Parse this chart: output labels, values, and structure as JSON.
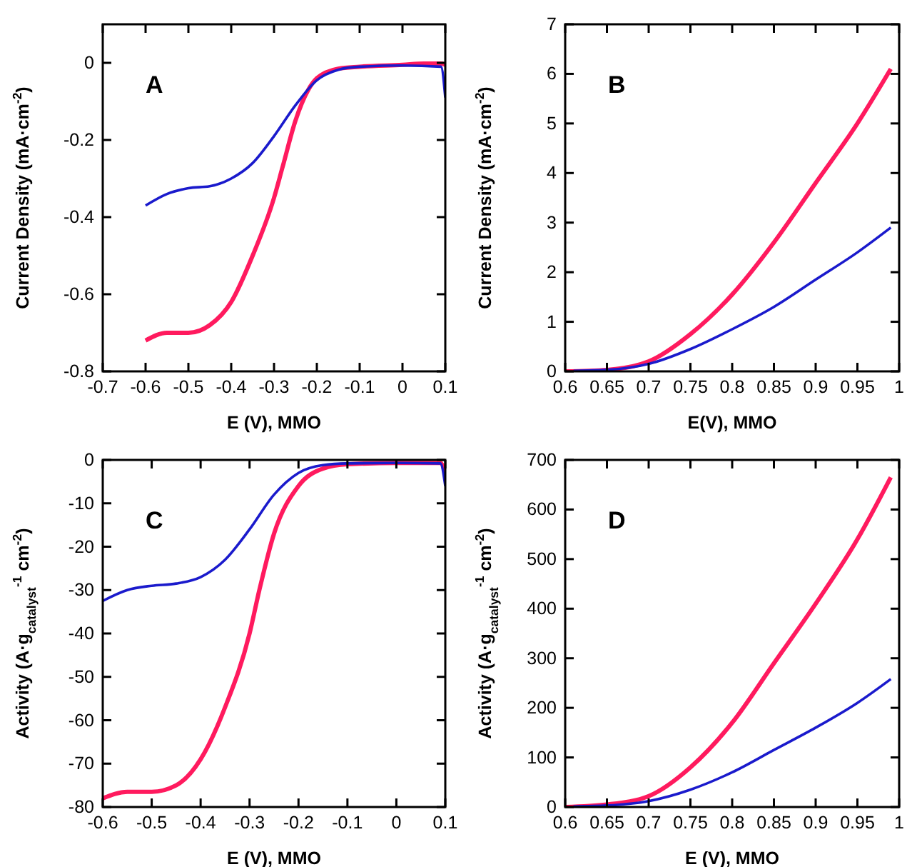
{
  "chart_data": [
    {
      "type": "line",
      "annotations": [
        "A"
      ],
      "xlabel": "E (V), MMO",
      "ylabel": "Current Density (mA·cm$^{-2}$)",
      "xlim": [
        -0.7,
        0.1
      ],
      "xticks": [
        -0.7,
        -0.6,
        -0.5,
        -0.4,
        -0.3,
        -0.2,
        -0.1,
        0,
        0.1
      ],
      "ylim": [
        -0.8,
        0.1
      ],
      "yticks": [
        -0.8,
        -0.6,
        -0.4,
        -0.2,
        0
      ],
      "grid": false,
      "line_style": "solid",
      "marker": "none",
      "series": [
        {
          "color": "#ff1a5e",
          "x": [
            -0.6,
            -0.55,
            -0.5,
            -0.45,
            -0.4,
            -0.35,
            -0.3,
            -0.28,
            -0.25,
            -0.22,
            -0.2,
            -0.15,
            -0.1,
            0,
            0.05,
            0.09,
            0.1
          ],
          "values": [
            -0.72,
            -0.7,
            -0.7,
            -0.68,
            -0.62,
            -0.5,
            -0.35,
            -0.27,
            -0.15,
            -0.07,
            -0.04,
            -0.015,
            -0.01,
            -0.005,
            -0.002,
            -0.002,
            -0.005
          ]
        },
        {
          "color": "#1a1acc",
          "x": [
            -0.6,
            -0.55,
            -0.5,
            -0.45,
            -0.4,
            -0.35,
            -0.3,
            -0.25,
            -0.2,
            -0.15,
            -0.1,
            0,
            0.09,
            0.1
          ],
          "values": [
            -0.37,
            -0.34,
            -0.325,
            -0.32,
            -0.3,
            -0.26,
            -0.19,
            -0.11,
            -0.045,
            -0.018,
            -0.01,
            -0.007,
            -0.01,
            -0.09
          ]
        }
      ]
    },
    {
      "type": "line",
      "annotations": [
        "B"
      ],
      "xlabel": "E(V), MMO",
      "ylabel": "Current Density (mA·cm$^{-2}$)",
      "xlim": [
        0.6,
        1
      ],
      "xticks": [
        0.6,
        0.65,
        0.7,
        0.75,
        0.8,
        0.85,
        0.9,
        0.95,
        1
      ],
      "ylim": [
        0,
        7
      ],
      "yticks": [
        0,
        1,
        2,
        3,
        4,
        5,
        6,
        7
      ],
      "grid": false,
      "line_style": "solid",
      "marker": "none",
      "series": [
        {
          "color": "#ff1a5e",
          "x": [
            0.6,
            0.65,
            0.7,
            0.75,
            0.8,
            0.85,
            0.9,
            0.95,
            0.99
          ],
          "values": [
            0,
            0.03,
            0.2,
            0.75,
            1.55,
            2.6,
            3.8,
            5.0,
            6.1
          ]
        },
        {
          "color": "#1a1acc",
          "x": [
            0.61,
            0.65,
            0.7,
            0.75,
            0.8,
            0.85,
            0.9,
            0.95,
            0.99
          ],
          "values": [
            0.01,
            0.03,
            0.15,
            0.45,
            0.85,
            1.3,
            1.85,
            2.4,
            2.9
          ]
        }
      ]
    },
    {
      "type": "line",
      "annotations": [
        "C"
      ],
      "xlabel": "E (V), MMO",
      "ylabel": "Activity (A·g$_{catalyst}$$^{-1}$ cm$^{-2}$)",
      "xlim": [
        -0.6,
        0.1
      ],
      "xticks": [
        -0.6,
        -0.5,
        -0.4,
        -0.3,
        -0.2,
        -0.1,
        0,
        0.1
      ],
      "ylim": [
        -80,
        0
      ],
      "yticks": [
        -80,
        -70,
        -60,
        -50,
        -40,
        -30,
        -20,
        -10,
        0
      ],
      "grid": false,
      "line_style": "solid",
      "marker": "none",
      "series": [
        {
          "color": "#ff1a5e",
          "x": [
            -0.6,
            -0.55,
            -0.5,
            -0.45,
            -0.4,
            -0.35,
            -0.3,
            -0.28,
            -0.25,
            -0.2,
            -0.15,
            -0.1,
            0,
            0.09,
            0.1
          ],
          "values": [
            -78,
            -76.5,
            -76.5,
            -75,
            -69,
            -57,
            -40,
            -30,
            -17,
            -6,
            -2,
            -1,
            -0.7,
            -0.7,
            -3
          ]
        },
        {
          "color": "#1a1acc",
          "x": [
            -0.6,
            -0.55,
            -0.5,
            -0.45,
            -0.4,
            -0.35,
            -0.3,
            -0.25,
            -0.2,
            -0.15,
            -0.1,
            0,
            0.09,
            0.1
          ],
          "values": [
            -32.5,
            -30,
            -29,
            -28.5,
            -27,
            -23,
            -16,
            -8,
            -3,
            -1.2,
            -0.8,
            -0.7,
            -0.8,
            -6
          ]
        }
      ]
    },
    {
      "type": "line",
      "annotations": [
        "D"
      ],
      "xlabel": "E (V), MMO",
      "ylabel": "Activity (A·g$_{catalyst}$$^{-1}$ cm$^{-2}$)",
      "xlim": [
        0.6,
        1
      ],
      "xticks": [
        0.6,
        0.65,
        0.7,
        0.75,
        0.8,
        0.85,
        0.9,
        0.95,
        1
      ],
      "ylim": [
        0,
        700
      ],
      "yticks": [
        0,
        100,
        200,
        300,
        400,
        500,
        600,
        700
      ],
      "grid": false,
      "line_style": "solid",
      "marker": "none",
      "series": [
        {
          "color": "#ff1a5e",
          "x": [
            0.6,
            0.65,
            0.7,
            0.75,
            0.8,
            0.85,
            0.9,
            0.95,
            0.99
          ],
          "values": [
            0,
            5,
            22,
            80,
            170,
            290,
            410,
            540,
            665
          ]
        },
        {
          "color": "#1a1acc",
          "x": [
            0.61,
            0.65,
            0.7,
            0.75,
            0.8,
            0.85,
            0.9,
            0.95,
            0.99
          ],
          "values": [
            1,
            3,
            12,
            35,
            70,
            115,
            160,
            210,
            258
          ]
        }
      ]
    }
  ]
}
